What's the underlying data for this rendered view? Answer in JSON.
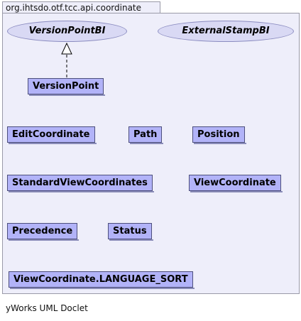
{
  "package": {
    "name": "org.ihtsdo.otf.tcc.api.coordinate"
  },
  "interfaces": [
    {
      "name": "VersionPointBI"
    },
    {
      "name": "ExternalStampBI"
    }
  ],
  "classes": [
    {
      "name": "VersionPoint"
    },
    {
      "name": "EditCoordinate"
    },
    {
      "name": "Path"
    },
    {
      "name": "Position"
    },
    {
      "name": "StandardViewCoordinates"
    },
    {
      "name": "ViewCoordinate"
    },
    {
      "name": "Precedence"
    },
    {
      "name": "Status"
    },
    {
      "name": "ViewCoordinate.LANGUAGE_SORT"
    }
  ],
  "relations": [
    {
      "type": "realization",
      "from": "VersionPoint",
      "to": "VersionPointBI"
    }
  ],
  "footer": "yWorks UML Doclet"
}
